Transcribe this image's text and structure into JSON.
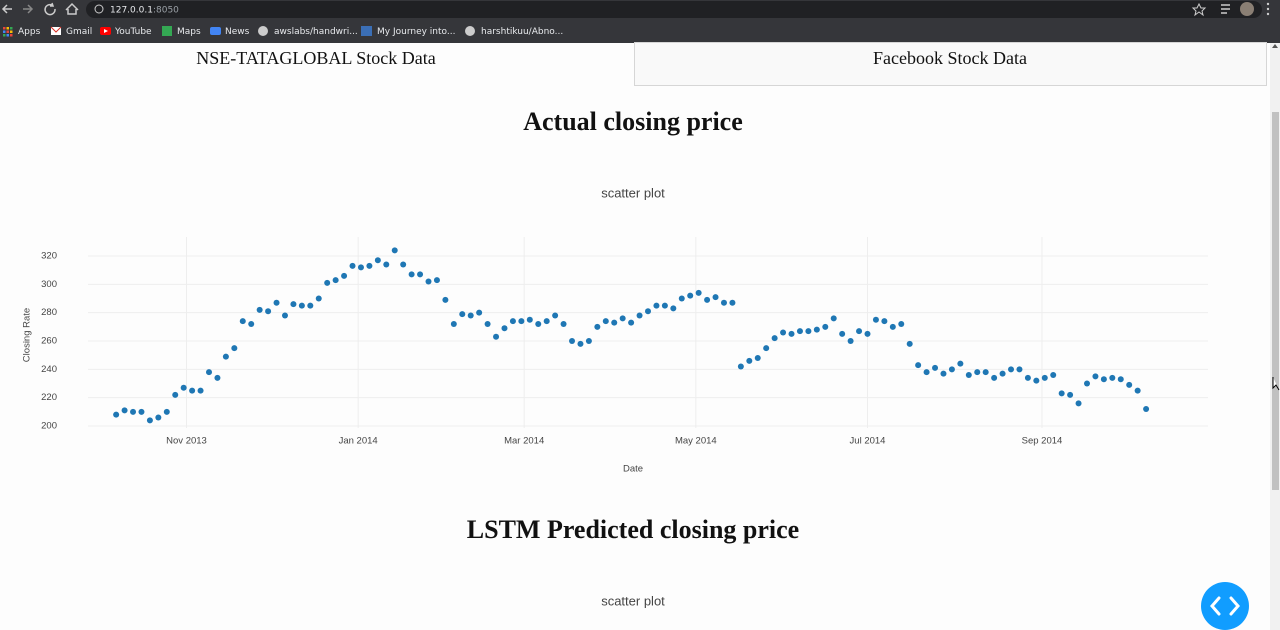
{
  "browser": {
    "url_host": "127.0.0.1",
    "url_port": ":8050",
    "bookmarks": [
      "Apps",
      "Gmail",
      "YouTube",
      "Maps",
      "News",
      "awslabs/handwri...",
      "My Journey into...",
      "harshtikuu/Abno..."
    ]
  },
  "tabs": [
    "NSE-TATAGLOBAL Stock Data",
    "Facebook Stock Data"
  ],
  "headings": [
    "Actual closing price",
    "LSTM Predicted closing price"
  ],
  "chart_data": [
    {
      "type": "scatter",
      "title": "scatter plot",
      "xlabel": "Date",
      "ylabel": "Closing Rate",
      "color": "#1f77b4",
      "grid": true,
      "x": [
        "2013-10-07",
        "2013-10-10",
        "2013-10-13",
        "2013-10-16",
        "2013-10-19",
        "2013-10-22",
        "2013-10-25",
        "2013-10-28",
        "2013-10-31",
        "2013-11-03",
        "2013-11-06",
        "2013-11-09",
        "2013-11-12",
        "2013-11-15",
        "2013-11-18",
        "2013-11-21",
        "2013-11-24",
        "2013-11-27",
        "2013-11-30",
        "2013-12-03",
        "2013-12-06",
        "2013-12-09",
        "2013-12-12",
        "2013-12-15",
        "2013-12-18",
        "2013-12-21",
        "2013-12-24",
        "2013-12-27",
        "2013-12-30",
        "2014-01-02",
        "2014-01-05",
        "2014-01-08",
        "2014-01-11",
        "2014-01-14",
        "2014-01-17",
        "2014-01-20",
        "2014-01-23",
        "2014-01-26",
        "2014-01-29",
        "2014-02-01",
        "2014-02-04",
        "2014-02-07",
        "2014-02-10",
        "2014-02-13",
        "2014-02-16",
        "2014-02-19",
        "2014-02-22",
        "2014-02-25",
        "2014-02-28",
        "2014-03-03",
        "2014-03-06",
        "2014-03-09",
        "2014-03-12",
        "2014-03-15",
        "2014-03-18",
        "2014-03-21",
        "2014-03-24",
        "2014-03-27",
        "2014-03-30",
        "2014-04-02",
        "2014-04-05",
        "2014-04-08",
        "2014-04-11",
        "2014-04-14",
        "2014-04-17",
        "2014-04-20",
        "2014-04-23",
        "2014-04-26",
        "2014-04-29",
        "2014-05-02",
        "2014-05-05",
        "2014-05-08",
        "2014-05-11",
        "2014-05-14",
        "2014-05-17",
        "2014-05-20",
        "2014-05-23",
        "2014-05-26",
        "2014-05-29",
        "2014-06-01",
        "2014-06-04",
        "2014-06-07",
        "2014-06-10",
        "2014-06-13",
        "2014-06-16",
        "2014-06-19",
        "2014-06-22",
        "2014-06-25",
        "2014-06-28",
        "2014-07-01",
        "2014-07-04",
        "2014-07-07",
        "2014-07-10",
        "2014-07-13",
        "2014-07-16",
        "2014-07-19",
        "2014-07-22",
        "2014-07-25",
        "2014-07-28",
        "2014-07-31",
        "2014-08-03",
        "2014-08-06",
        "2014-08-09",
        "2014-08-12",
        "2014-08-15",
        "2014-08-18",
        "2014-08-21",
        "2014-08-24",
        "2014-08-27",
        "2014-08-30",
        "2014-09-02",
        "2014-09-05",
        "2014-09-08",
        "2014-09-11",
        "2014-09-14",
        "2014-09-17",
        "2014-09-20",
        "2014-09-23",
        "2014-09-26",
        "2014-09-29",
        "2014-10-02",
        "2014-10-05",
        "2014-10-08"
      ],
      "values": [
        208,
        211,
        210,
        210,
        204,
        206,
        210,
        222,
        227,
        225,
        225,
        238,
        234,
        249,
        255,
        274,
        272,
        282,
        281,
        287,
        278,
        286,
        285,
        285,
        290,
        301,
        303,
        306,
        313,
        312,
        313,
        317,
        314,
        324,
        314,
        307,
        307,
        302,
        303,
        289,
        272,
        279,
        278,
        280,
        272,
        263,
        269,
        274,
        274,
        275,
        272,
        274,
        278,
        272,
        260,
        258,
        260,
        270,
        274,
        273,
        276,
        273,
        278,
        281,
        285,
        285,
        283,
        290,
        292,
        294,
        289,
        291,
        287,
        287,
        242,
        246,
        248,
        255,
        262,
        266,
        265,
        267,
        267,
        268,
        270,
        276,
        265,
        260,
        267,
        265,
        275,
        274,
        270,
        272,
        258,
        243,
        238,
        241,
        237,
        240,
        244,
        236,
        238,
        238,
        234,
        237,
        240,
        240,
        234,
        232,
        234,
        236,
        223,
        222,
        216,
        230,
        235,
        233,
        234,
        233,
        229,
        225,
        212
      ],
      "xlim": [
        "2013-09-27",
        "2014-10-30"
      ],
      "xticks": [
        {
          "value": "2013-11-01",
          "label": "Nov 2013"
        },
        {
          "value": "2014-01-01",
          "label": "Jan 2014"
        },
        {
          "value": "2014-03-01",
          "label": "Mar 2014"
        },
        {
          "value": "2014-05-01",
          "label": "May 2014"
        },
        {
          "value": "2014-07-01",
          "label": "Jul 2014"
        },
        {
          "value": "2014-09-01",
          "label": "Sep 2014"
        }
      ],
      "ylim": [
        198.6,
        333.4
      ],
      "yticks": [
        200,
        220,
        240,
        260,
        280,
        300,
        320
      ]
    },
    {
      "type": "scatter",
      "title": "scatter plot"
    }
  ]
}
